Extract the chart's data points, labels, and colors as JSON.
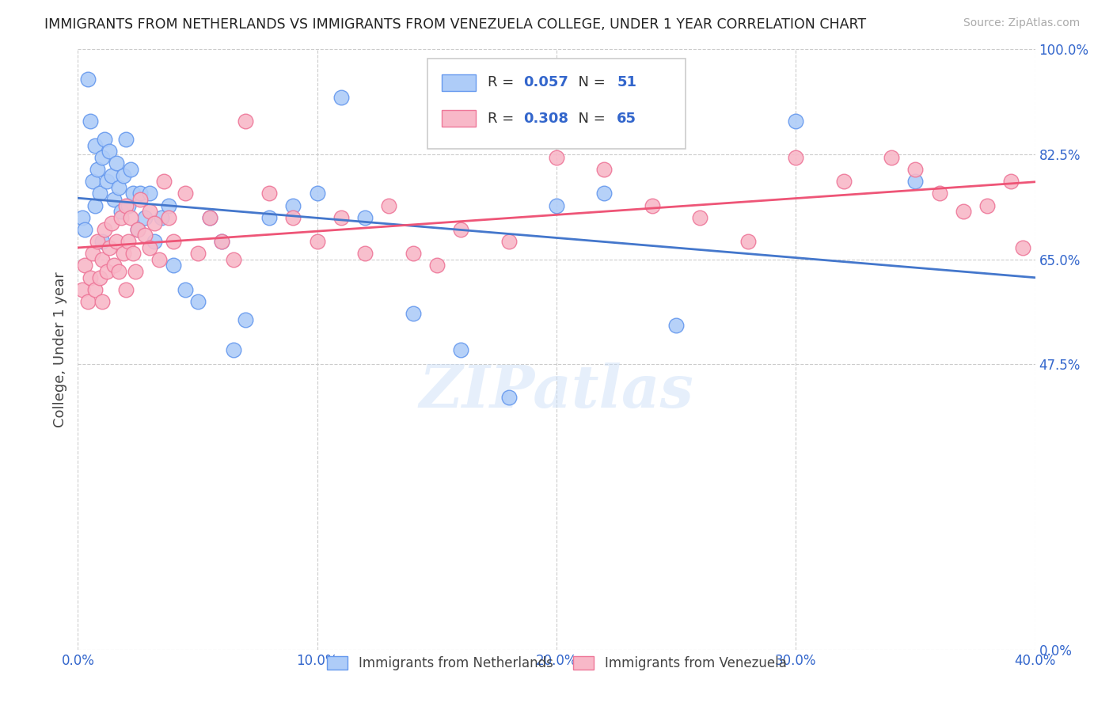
{
  "title": "IMMIGRANTS FROM NETHERLANDS VS IMMIGRANTS FROM VENEZUELA COLLEGE, UNDER 1 YEAR CORRELATION CHART",
  "source": "Source: ZipAtlas.com",
  "xlabel_ticks": [
    "0.0%",
    "10.0%",
    "20.0%",
    "30.0%",
    "40.0%"
  ],
  "xlabel_tick_vals": [
    0.0,
    0.1,
    0.2,
    0.3,
    0.4
  ],
  "ylabel": "College, Under 1 year",
  "ylabel_ticks": [
    "0.0%",
    "47.5%",
    "65.0%",
    "82.5%",
    "100.0%"
  ],
  "ylabel_tick_vals": [
    0.0,
    0.475,
    0.65,
    0.825,
    1.0
  ],
  "xlim": [
    0.0,
    0.4
  ],
  "ylim": [
    0.0,
    1.0
  ],
  "netherlands_R": 0.057,
  "netherlands_N": 51,
  "venezuela_R": 0.308,
  "venezuela_N": 65,
  "netherlands_color": "#aeccf8",
  "netherlands_edge": "#6699ee",
  "venezuela_color": "#f8b8c8",
  "venezuela_edge": "#ee7799",
  "line_netherlands": "#4477cc",
  "line_venezuela": "#ee5577",
  "watermark": "ZIPatlas",
  "background_color": "#ffffff",
  "grid_color": "#cccccc",
  "nl_x": [
    0.002,
    0.003,
    0.004,
    0.005,
    0.006,
    0.007,
    0.007,
    0.008,
    0.009,
    0.01,
    0.01,
    0.011,
    0.012,
    0.013,
    0.014,
    0.015,
    0.016,
    0.017,
    0.018,
    0.019,
    0.02,
    0.021,
    0.022,
    0.023,
    0.025,
    0.026,
    0.028,
    0.03,
    0.032,
    0.035,
    0.038,
    0.04,
    0.045,
    0.05,
    0.055,
    0.06,
    0.065,
    0.07,
    0.08,
    0.09,
    0.1,
    0.11,
    0.12,
    0.14,
    0.16,
    0.18,
    0.2,
    0.22,
    0.25,
    0.3,
    0.35
  ],
  "nl_y": [
    0.72,
    0.7,
    0.95,
    0.88,
    0.78,
    0.84,
    0.74,
    0.8,
    0.76,
    0.82,
    0.68,
    0.85,
    0.78,
    0.83,
    0.79,
    0.75,
    0.81,
    0.77,
    0.73,
    0.79,
    0.85,
    0.74,
    0.8,
    0.76,
    0.7,
    0.76,
    0.72,
    0.76,
    0.68,
    0.72,
    0.74,
    0.64,
    0.6,
    0.58,
    0.72,
    0.68,
    0.5,
    0.55,
    0.72,
    0.74,
    0.76,
    0.92,
    0.72,
    0.56,
    0.5,
    0.42,
    0.74,
    0.76,
    0.54,
    0.88,
    0.78
  ],
  "ven_x": [
    0.002,
    0.003,
    0.004,
    0.005,
    0.006,
    0.007,
    0.008,
    0.009,
    0.01,
    0.01,
    0.011,
    0.012,
    0.013,
    0.014,
    0.015,
    0.016,
    0.017,
    0.018,
    0.019,
    0.02,
    0.02,
    0.021,
    0.022,
    0.023,
    0.024,
    0.025,
    0.026,
    0.028,
    0.03,
    0.03,
    0.032,
    0.034,
    0.036,
    0.038,
    0.04,
    0.045,
    0.05,
    0.055,
    0.06,
    0.065,
    0.07,
    0.08,
    0.09,
    0.1,
    0.11,
    0.12,
    0.13,
    0.14,
    0.15,
    0.16,
    0.18,
    0.2,
    0.22,
    0.24,
    0.26,
    0.28,
    0.3,
    0.32,
    0.34,
    0.35,
    0.36,
    0.37,
    0.38,
    0.39,
    0.395
  ],
  "ven_y": [
    0.6,
    0.64,
    0.58,
    0.62,
    0.66,
    0.6,
    0.68,
    0.62,
    0.65,
    0.58,
    0.7,
    0.63,
    0.67,
    0.71,
    0.64,
    0.68,
    0.63,
    0.72,
    0.66,
    0.6,
    0.74,
    0.68,
    0.72,
    0.66,
    0.63,
    0.7,
    0.75,
    0.69,
    0.73,
    0.67,
    0.71,
    0.65,
    0.78,
    0.72,
    0.68,
    0.76,
    0.66,
    0.72,
    0.68,
    0.65,
    0.88,
    0.76,
    0.72,
    0.68,
    0.72,
    0.66,
    0.74,
    0.66,
    0.64,
    0.7,
    0.68,
    0.82,
    0.8,
    0.74,
    0.72,
    0.68,
    0.82,
    0.78,
    0.82,
    0.8,
    0.76,
    0.73,
    0.74,
    0.78,
    0.67
  ]
}
